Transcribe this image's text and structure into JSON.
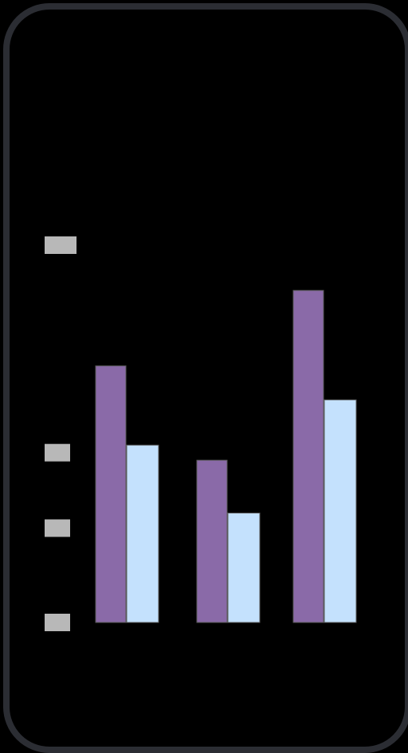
{
  "colors": {
    "background": "#000000",
    "frame": "#2b2d33",
    "series_a": "#8a6aa8",
    "series_b": "#c4e1fd",
    "bar_edge": "#5a5a5a",
    "tick_placeholder": "#b8b8b8"
  },
  "chart_data": {
    "type": "bar",
    "title": "",
    "xlabel": "",
    "ylabel": "",
    "categories": [
      "",
      "",
      ""
    ],
    "series": [
      {
        "values": [
          68,
          43,
          88
        ]
      },
      {
        "values": [
          47,
          29,
          59
        ]
      }
    ],
    "ylim": [
      0,
      100
    ],
    "y_ticks": [
      0,
      25,
      45,
      100
    ],
    "tick_labels_obscured": true,
    "grid": false,
    "legend": "none"
  }
}
